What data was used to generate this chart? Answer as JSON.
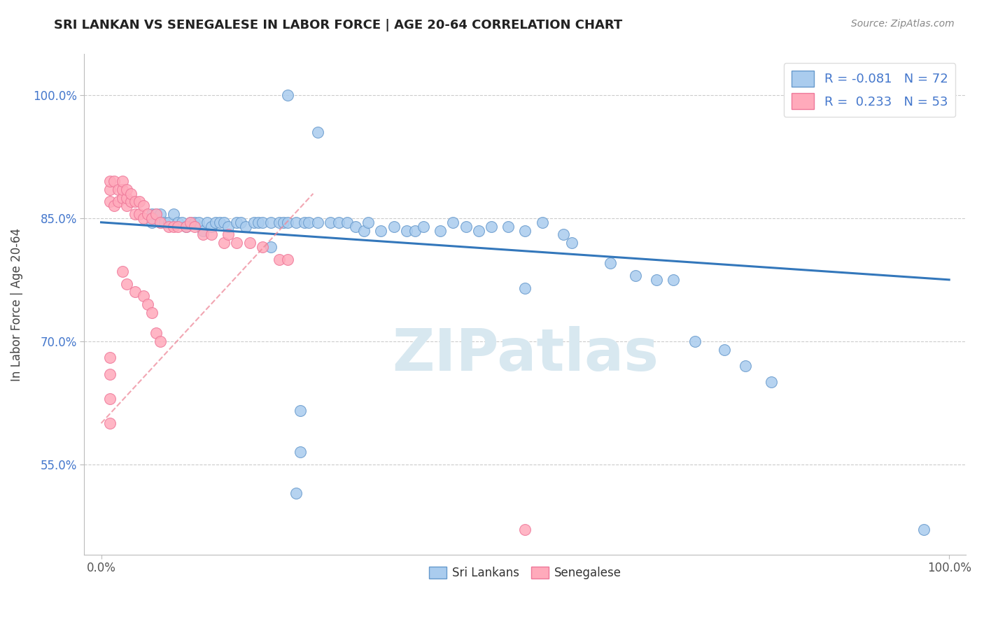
{
  "title": "SRI LANKAN VS SENEGALESE IN LABOR FORCE | AGE 20-64 CORRELATION CHART",
  "source": "Source: ZipAtlas.com",
  "ylabel": "In Labor Force | Age 20-64",
  "xlim": [
    -0.02,
    1.02
  ],
  "ylim": [
    0.44,
    1.05
  ],
  "ytick_positions": [
    0.55,
    0.7,
    0.85,
    1.0
  ],
  "ytick_labels": [
    "55.0%",
    "70.0%",
    "85.0%",
    "100.0%"
  ],
  "blue_R": -0.081,
  "blue_N": 72,
  "pink_R": 0.233,
  "pink_N": 53,
  "blue_color": "#aaccee",
  "blue_edge": "#6699cc",
  "pink_color": "#ffaabb",
  "pink_edge": "#ee7799",
  "trend_blue_color": "#3377bb",
  "trend_pink_color": "#ee8899",
  "trend_blue_start_y": 0.845,
  "trend_blue_end_y": 0.775,
  "trend_pink_x0": 0.0,
  "trend_pink_y0": 0.6,
  "trend_pink_x1": 0.25,
  "trend_pink_y1": 0.88,
  "blue_scatter_x": [
    0.22,
    0.255,
    0.06,
    0.06,
    0.065,
    0.07,
    0.07,
    0.075,
    0.08,
    0.085,
    0.09,
    0.095,
    0.1,
    0.105,
    0.11,
    0.115,
    0.12,
    0.125,
    0.13,
    0.135,
    0.14,
    0.145,
    0.15,
    0.16,
    0.165,
    0.17,
    0.18,
    0.185,
    0.19,
    0.2,
    0.21,
    0.215,
    0.22,
    0.23,
    0.24,
    0.245,
    0.255,
    0.27,
    0.28,
    0.29,
    0.3,
    0.31,
    0.315,
    0.33,
    0.345,
    0.36,
    0.37,
    0.38,
    0.4,
    0.415,
    0.43,
    0.445,
    0.46,
    0.48,
    0.5,
    0.52,
    0.545,
    0.555,
    0.6,
    0.63,
    0.655,
    0.675,
    0.7,
    0.735,
    0.76,
    0.79,
    0.5,
    0.2,
    0.235,
    0.235,
    0.23,
    0.97
  ],
  "blue_scatter_y": [
    1.0,
    0.955,
    0.855,
    0.845,
    0.855,
    0.845,
    0.855,
    0.845,
    0.845,
    0.855,
    0.845,
    0.845,
    0.84,
    0.845,
    0.845,
    0.845,
    0.835,
    0.845,
    0.84,
    0.845,
    0.845,
    0.845,
    0.84,
    0.845,
    0.845,
    0.84,
    0.845,
    0.845,
    0.845,
    0.845,
    0.845,
    0.845,
    0.845,
    0.845,
    0.845,
    0.845,
    0.845,
    0.845,
    0.845,
    0.845,
    0.84,
    0.835,
    0.845,
    0.835,
    0.84,
    0.835,
    0.835,
    0.84,
    0.835,
    0.845,
    0.84,
    0.835,
    0.84,
    0.84,
    0.835,
    0.845,
    0.83,
    0.82,
    0.795,
    0.78,
    0.775,
    0.775,
    0.7,
    0.69,
    0.67,
    0.65,
    0.765,
    0.815,
    0.615,
    0.565,
    0.515,
    0.47
  ],
  "pink_scatter_x": [
    0.01,
    0.01,
    0.01,
    0.015,
    0.015,
    0.02,
    0.02,
    0.025,
    0.025,
    0.025,
    0.03,
    0.03,
    0.03,
    0.035,
    0.035,
    0.04,
    0.04,
    0.045,
    0.045,
    0.05,
    0.05,
    0.055,
    0.06,
    0.065,
    0.07,
    0.08,
    0.085,
    0.09,
    0.1,
    0.105,
    0.11,
    0.12,
    0.13,
    0.145,
    0.15,
    0.16,
    0.175,
    0.19,
    0.21,
    0.22,
    0.025,
    0.03,
    0.04,
    0.05,
    0.055,
    0.06,
    0.065,
    0.07,
    0.01,
    0.01,
    0.01,
    0.01,
    0.5
  ],
  "pink_scatter_y": [
    0.87,
    0.885,
    0.895,
    0.865,
    0.895,
    0.87,
    0.885,
    0.875,
    0.885,
    0.895,
    0.865,
    0.875,
    0.885,
    0.87,
    0.88,
    0.855,
    0.87,
    0.855,
    0.87,
    0.85,
    0.865,
    0.855,
    0.85,
    0.855,
    0.845,
    0.84,
    0.84,
    0.84,
    0.84,
    0.845,
    0.84,
    0.83,
    0.83,
    0.82,
    0.83,
    0.82,
    0.82,
    0.815,
    0.8,
    0.8,
    0.785,
    0.77,
    0.76,
    0.755,
    0.745,
    0.735,
    0.71,
    0.7,
    0.68,
    0.66,
    0.63,
    0.6,
    0.47
  ],
  "watermark_text": "ZIPatlas",
  "watermark_color": "#d8e8f0",
  "background_color": "#ffffff",
  "grid_color": "#cccccc"
}
